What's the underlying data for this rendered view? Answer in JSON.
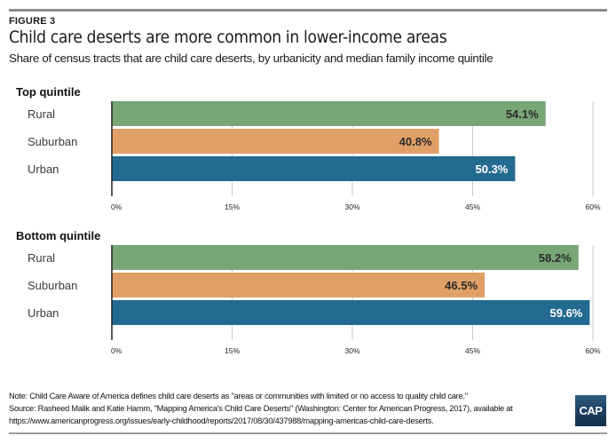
{
  "header": {
    "figure_label": "FIGURE 3",
    "title": "Child care deserts are more common in lower-income areas",
    "subtitle": "Share of census tracts that are child care deserts, by urbanicity and median family income quintile"
  },
  "chart_data": [
    {
      "type": "bar",
      "orientation": "horizontal",
      "title": "Top quintile",
      "categories": [
        "Rural",
        "Suburban",
        "Urban"
      ],
      "values": [
        54.1,
        40.8,
        50.3
      ],
      "value_labels": [
        "54.1%",
        "40.8%",
        "50.3%"
      ],
      "colors": [
        "#78a677",
        "#e09f66",
        "#236a91"
      ],
      "label_colors": [
        "#2b2b2b",
        "#2b2b2b",
        "#ffffff"
      ],
      "xlim": [
        0,
        60
      ],
      "xticks": [
        0,
        15,
        30,
        45,
        60
      ],
      "xtick_labels": [
        "0%",
        "15%",
        "30%",
        "45%",
        "60%"
      ],
      "grid": true,
      "xlabel": "",
      "ylabel": ""
    },
    {
      "type": "bar",
      "orientation": "horizontal",
      "title": "Bottom quintile",
      "categories": [
        "Rural",
        "Suburban",
        "Urban"
      ],
      "values": [
        58.2,
        46.5,
        59.6
      ],
      "value_labels": [
        "58.2%",
        "46.5%",
        "59.6%"
      ],
      "colors": [
        "#78a677",
        "#e09f66",
        "#236a91"
      ],
      "label_colors": [
        "#2b2b2b",
        "#2b2b2b",
        "#ffffff"
      ],
      "xlim": [
        0,
        60
      ],
      "xticks": [
        0,
        15,
        30,
        45,
        60
      ],
      "xtick_labels": [
        "0%",
        "15%",
        "30%",
        "45%",
        "60%"
      ],
      "grid": true,
      "xlabel": "",
      "ylabel": ""
    }
  ],
  "footer": {
    "note": "Note: Child Care Aware of America defines child care deserts as \"areas or communities with limited or no access to quality child care.\"",
    "source_line1": "Source: Rasheed Malik and Katie Hamm, \"Mapping America's Child Care Deserts\" (Washington: Center for American Progress, 2017), available at",
    "source_line2": "https://www.americanprogress.org/issues/early-childhood/reports/2017/08/30/437988/mapping-americas-child-care-deserts.",
    "logo_text": "CAP"
  }
}
